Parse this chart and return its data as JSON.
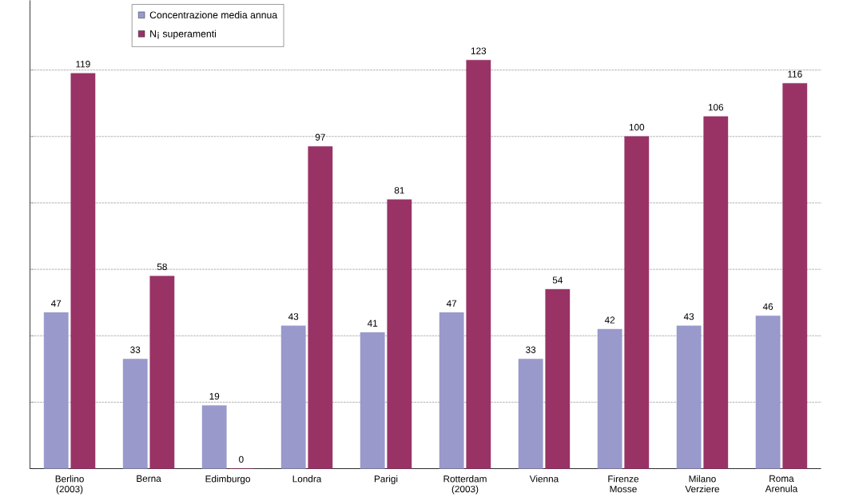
{
  "chart_data": {
    "type": "bar",
    "categories": [
      "Berlino (2003)",
      "Berna",
      "Edimburgo",
      "Londra",
      "Parigi",
      "Rotterdam (2003)",
      "Vienna",
      "Firenze Mosse",
      "Milano Verziere",
      "Roma Arenula"
    ],
    "series": [
      {
        "name": "Concentrazione media annua",
        "color": "#9999cc",
        "values": [
          47,
          33,
          19,
          43,
          41,
          47,
          33,
          42,
          43,
          46
        ]
      },
      {
        "name": "N¡ superamenti",
        "color": "#993366",
        "values": [
          119,
          58,
          0,
          97,
          81,
          123,
          54,
          100,
          106,
          116
        ]
      }
    ],
    "ylim": [
      0,
      141
    ],
    "yticks": [
      {
        "value": 0,
        "label": null
      },
      {
        "value": 20,
        "label": null
      },
      {
        "value": 40,
        "label": null
      },
      {
        "value": 60,
        "label": null
      },
      {
        "value": 80,
        "label": null
      },
      {
        "value": 100,
        "label": null
      },
      {
        "value": 120,
        "label": null
      }
    ],
    "tick_labels": "x",
    "grid": "y",
    "data_labels": true,
    "legend": "top left"
  }
}
